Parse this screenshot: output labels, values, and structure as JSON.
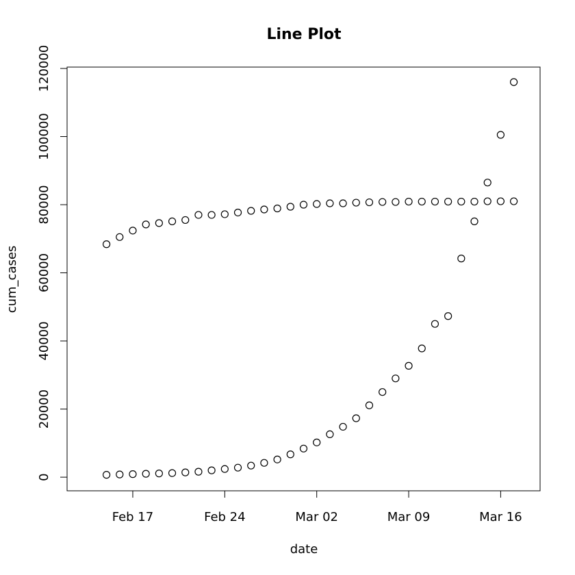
{
  "chart_data": {
    "type": "scatter",
    "title": "Line Plot",
    "xlabel": "date",
    "ylabel": "cum_cases",
    "x_ticks": [
      "2020-02-17",
      "2020-02-24",
      "2020-03-02",
      "2020-03-09",
      "2020-03-16"
    ],
    "x_tick_labels": [
      "Feb 17",
      "Feb 24",
      "Mar 02",
      "Mar 09",
      "Mar 16"
    ],
    "y_ticks": [
      0,
      20000,
      40000,
      60000,
      80000,
      100000,
      120000
    ],
    "y_tick_labels": [
      "0",
      "20000",
      "40000",
      "60000",
      "80000",
      "100000",
      "120000"
    ],
    "xlim": [
      "2020-02-12",
      "2020-03-19"
    ],
    "ylim": [
      -4000,
      120400
    ],
    "grid": false,
    "marker": "open-circle",
    "series": [
      {
        "x": [
          "2020-02-15",
          "2020-02-16",
          "2020-02-17",
          "2020-02-18",
          "2020-02-19",
          "2020-02-20",
          "2020-02-21",
          "2020-02-22",
          "2020-02-23",
          "2020-02-24",
          "2020-02-25",
          "2020-02-26",
          "2020-02-27",
          "2020-02-28",
          "2020-02-29",
          "2020-03-01",
          "2020-03-02",
          "2020-03-03",
          "2020-03-04",
          "2020-03-05",
          "2020-03-06",
          "2020-03-07",
          "2020-03-08",
          "2020-03-09",
          "2020-03-10",
          "2020-03-11",
          "2020-03-12",
          "2020-03-13",
          "2020-03-14",
          "2020-03-15",
          "2020-03-16",
          "2020-03-17"
        ],
        "y": [
          68400,
          70500,
          72400,
          74200,
          74600,
          75100,
          75500,
          77000,
          77000,
          77200,
          77700,
          78200,
          78600,
          78900,
          79400,
          80000,
          80200,
          80400,
          80400,
          80600,
          80700,
          80800,
          80800,
          80900,
          80900,
          80900,
          80900,
          80900,
          80900,
          81000,
          81000,
          81000
        ]
      },
      {
        "x": [
          "2020-02-15",
          "2020-02-16",
          "2020-02-17",
          "2020-02-18",
          "2020-02-19",
          "2020-02-20",
          "2020-02-21",
          "2020-02-22",
          "2020-02-23",
          "2020-02-24",
          "2020-02-25",
          "2020-02-26",
          "2020-02-27",
          "2020-02-28",
          "2020-02-29",
          "2020-03-01",
          "2020-03-02",
          "2020-03-03",
          "2020-03-04",
          "2020-03-05",
          "2020-03-06",
          "2020-03-07",
          "2020-03-08",
          "2020-03-09",
          "2020-03-10",
          "2020-03-11",
          "2020-03-12",
          "2020-03-13",
          "2020-03-14",
          "2020-03-15",
          "2020-03-16",
          "2020-03-17"
        ],
        "y": [
          700,
          800,
          900,
          1000,
          1100,
          1200,
          1400,
          1600,
          2000,
          2400,
          2800,
          3400,
          4200,
          5200,
          6700,
          8400,
          10200,
          12600,
          14800,
          17300,
          21100,
          25000,
          29000,
          32700,
          37800,
          45000,
          47300,
          64200,
          75100,
          86500,
          100500,
          116000
        ]
      }
    ]
  }
}
